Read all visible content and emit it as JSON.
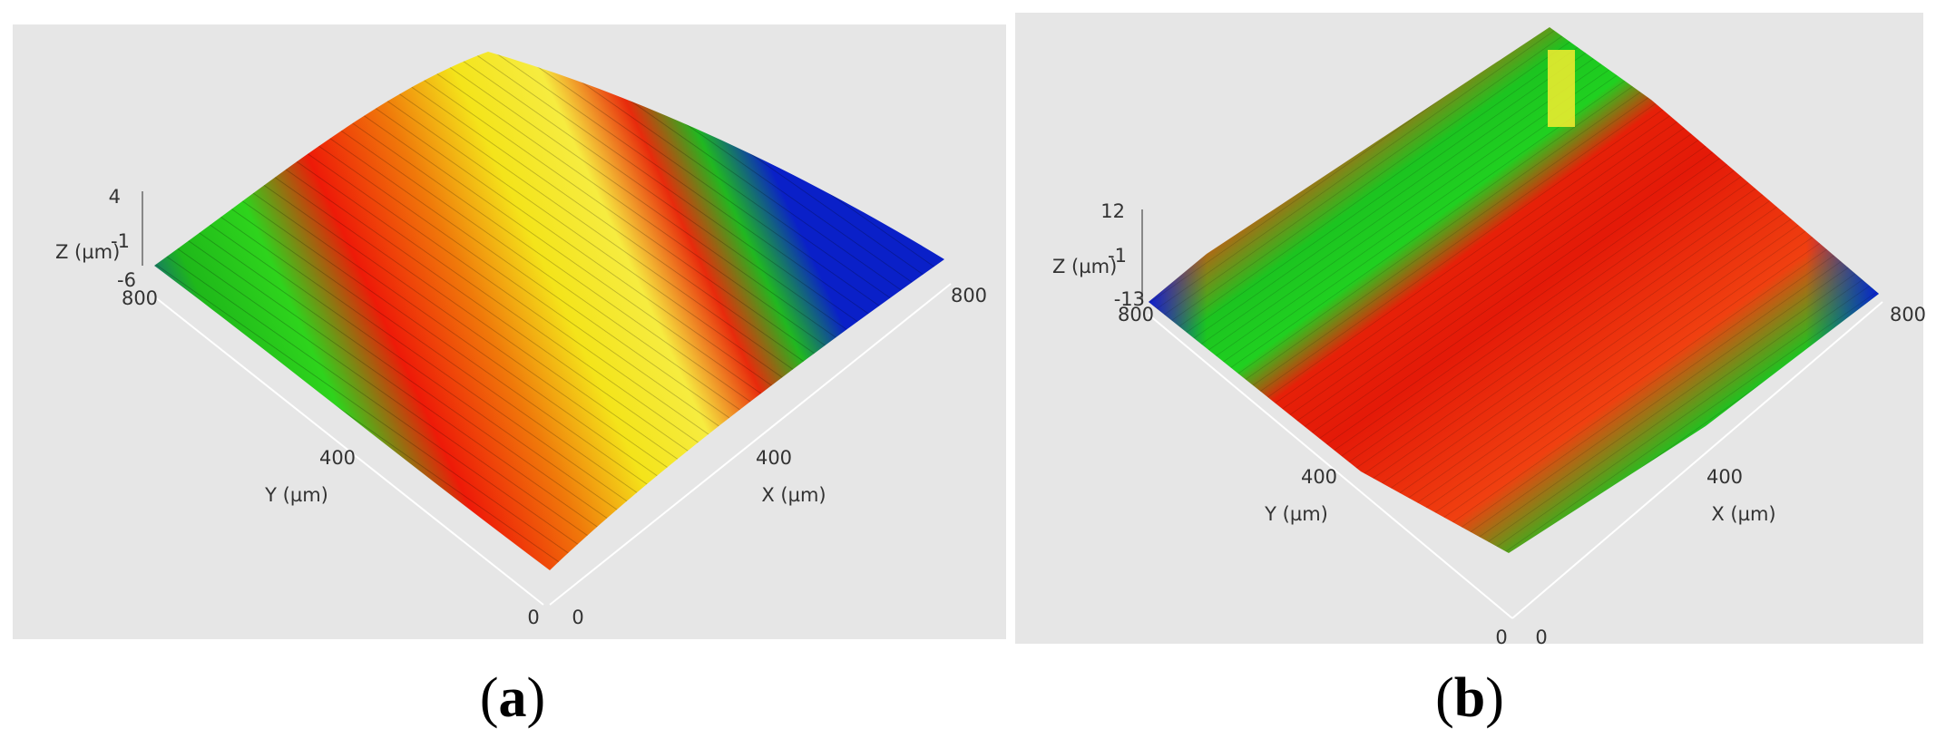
{
  "panels": [
    {
      "caption": {
        "open": "(",
        "letter": "a",
        "close": ")"
      },
      "z_label": "Z (µm)",
      "z_ticks": [
        "4",
        "-1",
        "-6"
      ],
      "y_label": "Y (µm)",
      "y_ticks": [
        "800",
        "400",
        "0"
      ],
      "x_label": "X (µm)",
      "x_ticks": [
        "0",
        "400",
        "800"
      ]
    },
    {
      "caption": {
        "open": "(",
        "letter": "b",
        "close": ")"
      },
      "z_label": "Z (µm)",
      "z_ticks": [
        "12",
        "-1",
        "-13"
      ],
      "y_label": "Y (µm)",
      "y_ticks": [
        "800",
        "400",
        "0"
      ],
      "x_label": "X (µm)",
      "x_ticks": [
        "0",
        "400",
        "800"
      ]
    }
  ]
}
